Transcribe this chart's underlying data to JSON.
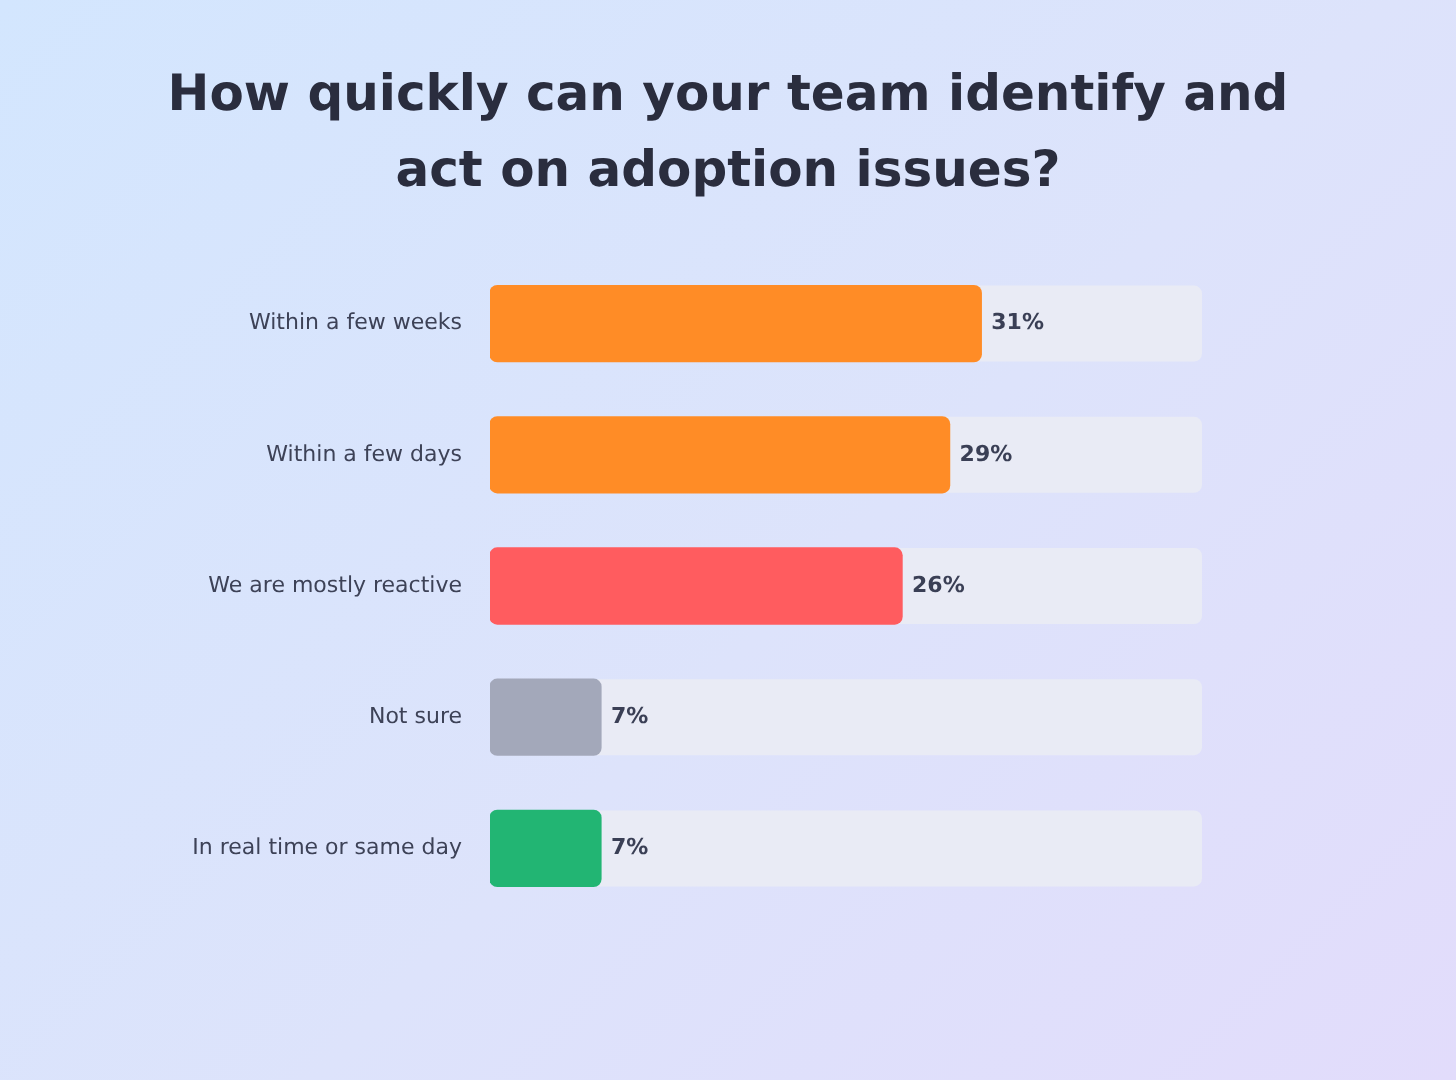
{
  "chart_data": {
    "type": "bar",
    "orientation": "horizontal",
    "title": "How quickly can your team identify and act on adoption issues?",
    "categories": [
      "Within a few weeks",
      "Within a few days",
      "We are mostly reactive",
      "Not sure",
      "In real time or same day"
    ],
    "values": [
      31,
      29,
      26,
      7,
      7
    ],
    "colors": [
      "#ff8c26",
      "#ff8c26",
      "#ff5c5f",
      "#a3a8ba",
      "#22b573"
    ],
    "value_labels": [
      "31%",
      "29%",
      "26%",
      "7%",
      "7%"
    ],
    "grid": false,
    "legend": false,
    "tick_labels": "y"
  }
}
